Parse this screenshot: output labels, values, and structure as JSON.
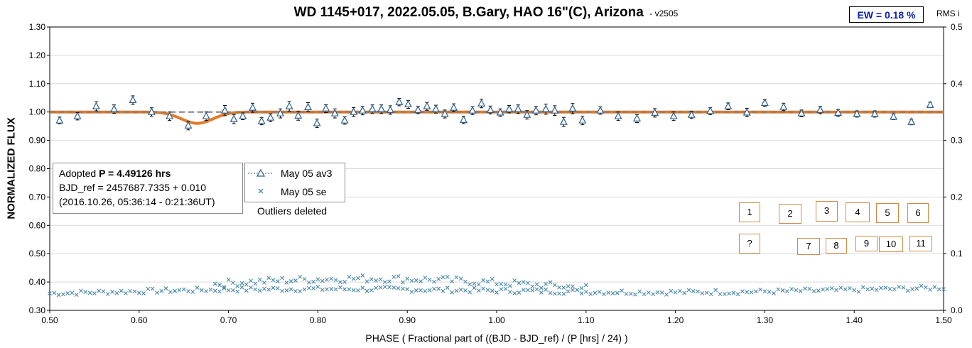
{
  "chart_data": {
    "type": "scatter",
    "title": "WD 1145+017, 2022.05.05, B.Gary, HAO 16\"(C), Arizona",
    "title_suffix": "-  v2505",
    "ew_label": "EW = 0.18 %",
    "rms_label": "RMS i",
    "xlabel": "PHASE ( Fractional part of ((BJD - BJD_ref) / (P [hrs] / 24) )",
    "ylabel": "NORMALIZED FLUX",
    "xlim": [
      0.5,
      1.5
    ],
    "ylim": [
      0.3,
      1.3
    ],
    "y2lim": [
      0.0,
      0.5
    ],
    "x_ticks": [
      "0.50",
      "0.60",
      "0.70",
      "0.80",
      "0.90",
      "1.00",
      "1.10",
      "1.20",
      "1.30",
      "1.40",
      "1.50"
    ],
    "y_ticks": [
      "0.30",
      "0.40",
      "0.50",
      "0.60",
      "0.70",
      "0.80",
      "0.90",
      "1.00",
      "1.10",
      "1.20",
      "1.30"
    ],
    "y2_ticks": [
      "0.0",
      "0.1",
      "0.2",
      "0.3",
      "0.4",
      "0.5"
    ],
    "grid": "horizontal",
    "info": {
      "line1_prefix": "Adopted ",
      "line1_bold": "P = 4.49126 hrs",
      "line2": "BJD_ref = 2457687.7335 + 0.010",
      "line3": "(2016.10.26, 05:36:14 - 0:21:36UT)"
    },
    "legend": [
      {
        "name": "May 05 av3",
        "marker": "triangle"
      },
      {
        "name": "May 05 se",
        "marker": "x"
      }
    ],
    "note": "Outliers deleted",
    "markers": [
      {
        "label": "1",
        "x": 1.284
      },
      {
        "label": "2",
        "x": 1.325
      },
      {
        "label": "3",
        "x": 1.364
      },
      {
        "label": "4",
        "x": 1.402
      },
      {
        "label": "5",
        "x": 1.441
      },
      {
        "label": "6",
        "x": 1.478
      },
      {
        "label": "?",
        "x": 1.284
      },
      {
        "label": "7",
        "x": 1.333
      },
      {
        "label": "8",
        "x": 1.372
      },
      {
        "label": "9",
        "x": 1.412
      },
      {
        "label": "10",
        "x": 1.445
      },
      {
        "label": "11",
        "x": 1.487
      }
    ],
    "series": [
      {
        "name": "May 05 av3",
        "color": "#2e5f8e",
        "x": [
          0.511,
          0.531,
          0.552,
          0.572,
          0.593,
          0.614,
          0.634,
          0.655,
          0.675,
          0.696,
          0.706,
          0.716,
          0.727,
          0.737,
          0.747,
          0.758,
          0.768,
          0.778,
          0.789,
          0.799,
          0.809,
          0.819,
          0.83,
          0.84,
          0.85,
          0.861,
          0.871,
          0.881,
          0.891,
          0.901,
          0.912,
          0.922,
          0.932,
          0.942,
          0.952,
          0.963,
          0.973,
          0.983,
          0.993,
          1.004,
          1.014,
          1.024,
          1.034,
          1.044,
          1.055,
          1.065,
          1.075,
          1.085,
          1.096,
          1.116,
          1.136,
          1.157,
          1.177,
          1.198,
          1.218,
          1.239,
          1.259,
          1.28,
          1.3,
          1.321,
          1.341,
          1.362,
          1.382,
          1.403,
          1.423,
          1.444,
          1.464,
          1.485
        ],
        "y": [
          0.97,
          0.985,
          1.02,
          1.01,
          1.042,
          1.0,
          0.985,
          0.952,
          0.985,
          1.005,
          0.975,
          0.985,
          1.015,
          0.968,
          0.98,
          0.995,
          1.02,
          0.987,
          1.017,
          0.96,
          1.012,
          0.995,
          0.97,
          1.0,
          1.005,
          1.01,
          1.01,
          1.007,
          1.035,
          1.027,
          1.007,
          1.02,
          1.01,
          0.993,
          1.015,
          0.972,
          1.005,
          1.03,
          1.007,
          0.998,
          1.01,
          1.01,
          0.99,
          1.005,
          1.01,
          1.005,
          0.965,
          1.012,
          0.97,
          1.005,
          0.985,
          0.977,
          0.997,
          0.985,
          0.99,
          1.003,
          1.02,
          0.998,
          1.032,
          1.018,
          0.995,
          1.007,
          0.997,
          0.993,
          0.993,
          0.983,
          0.965,
          1.025
        ],
        "err": [
          0.012,
          0.013,
          0.016,
          0.015,
          0.015,
          0.015,
          0.015,
          0.015,
          0.015,
          0.018,
          0.016,
          0.012,
          0.016,
          0.013,
          0.014,
          0.016,
          0.017,
          0.016,
          0.016,
          0.015,
          0.014,
          0.016,
          0.013,
          0.016,
          0.015,
          0.015,
          0.015,
          0.015,
          0.013,
          0.014,
          0.013,
          0.014,
          0.014,
          0.014,
          0.014,
          0.013,
          0.014,
          0.015,
          0.014,
          0.013,
          0.013,
          0.015,
          0.015,
          0.015,
          0.018,
          0.017,
          0.016,
          0.018,
          0.015,
          0.013,
          0.015,
          0.014,
          0.015,
          0.015,
          0.013,
          0.012,
          0.012,
          0.015,
          0.012,
          0.013,
          0.012,
          0.013,
          0.012,
          0.011,
          0.011,
          0.01,
          0.01,
          0.009
        ]
      },
      {
        "name": "May 05 se",
        "color": "#4a88a8",
        "lower_band": {
          "x_start": 0.5,
          "x_end": 1.5,
          "step": 0.005,
          "y_low": 0.345,
          "y_high": 0.395
        },
        "upper_band": {
          "x_start": 0.685,
          "x_end": 1.1,
          "step": 0.005,
          "y_low": 0.355,
          "y_high": 0.43
        }
      },
      {
        "name": "Model",
        "color": "#e07b2a",
        "dip_center": 0.665,
        "dip_depth": 0.04,
        "dip_width": 0.025
      },
      {
        "name": "Baseline",
        "color": "#808080",
        "y": 1.0
      }
    ]
  }
}
